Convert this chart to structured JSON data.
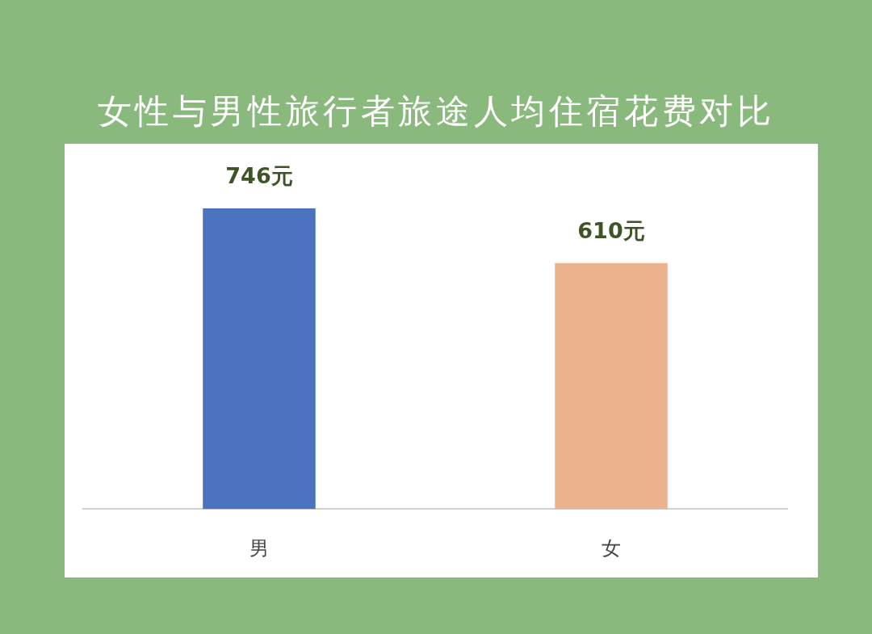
{
  "chart_data": {
    "type": "bar",
    "title": "女性与男性旅行者旅途人均住宿花费对比",
    "categories": [
      "男",
      "女"
    ],
    "values": [
      746,
      610
    ],
    "colors": [
      "#4a72be",
      "#ebb28d"
    ],
    "value_labels": [
      "746元",
      "610元"
    ],
    "tick_labels": "x"
  }
}
